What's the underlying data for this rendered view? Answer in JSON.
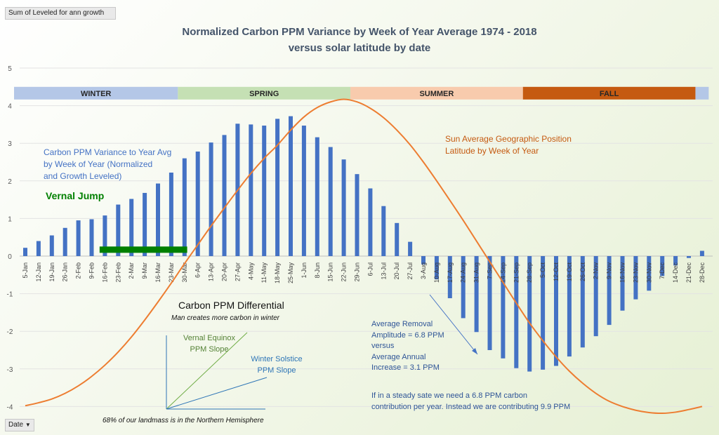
{
  "controls": {
    "pivot_field_label": "Sum of Leveled for ann growth",
    "date_field_label": "Date",
    "date_dropdown_icon": "chevron-down-icon"
  },
  "chart_data": {
    "type": "bar",
    "title": "Normalized Carbon PPM Variance by Week  of  Year Average 1974 - 2018",
    "subtitle": "versus solar latitude by date",
    "ylim": [
      -4,
      5
    ],
    "yticks": [
      5,
      4,
      3,
      2,
      1,
      0,
      -1,
      -2,
      -3,
      -4
    ],
    "grid": true,
    "categories": [
      "5-Jan",
      "12-Jan",
      "19-Jan",
      "26-Jan",
      "2-Feb",
      "9-Feb",
      "16-Feb",
      "23-Feb",
      "2-Mar",
      "9-Mar",
      "16-Mar",
      "23-Mar",
      "30-Mar",
      "6-Apr",
      "13-Apr",
      "20-Apr",
      "27-Apr",
      "4-May",
      "11-May",
      "18-May",
      "25-May",
      "1-Jun",
      "8-Jun",
      "15-Jun",
      "22-Jun",
      "29-Jun",
      "6-Jul",
      "13-Jul",
      "20-Jul",
      "27-Jul",
      "3-Aug",
      "10-Aug",
      "17-Aug",
      "24-Aug",
      "31-Aug",
      "7-Sep",
      "14-Sep",
      "21-Sep",
      "28-Sep",
      "5-Oct",
      "12-Oct",
      "19-Oct",
      "26-Oct",
      "2-Nov",
      "9-Nov",
      "16-Nov",
      "23-Nov",
      "30-Nov",
      "7-Dec",
      "14-Dec",
      "21-Dec",
      "28-Dec"
    ],
    "series": [
      {
        "color": "#4472c4",
        "values": [
          0.22,
          0.4,
          0.55,
          0.75,
          0.95,
          0.98,
          1.08,
          1.37,
          1.52,
          1.68,
          1.93,
          2.22,
          2.6,
          2.78,
          3.02,
          3.22,
          3.52,
          3.5,
          3.47,
          3.65,
          3.72,
          3.47,
          3.16,
          2.9,
          2.57,
          2.18,
          1.8,
          1.33,
          0.88,
          0.38,
          -0.22,
          -0.62,
          -1.12,
          -1.65,
          -2.02,
          -2.5,
          -2.72,
          -2.98,
          -3.07,
          -3.02,
          -2.92,
          -2.67,
          -2.43,
          -2.13,
          -1.83,
          -1.45,
          -1.15,
          -0.92,
          -0.53,
          -0.25,
          -0.05,
          0.14
        ]
      },
      {
        "name": "Sun Average Geographic Position Latitude by Week of Year",
        "type": "line",
        "color": "#ed7d31",
        "values": [
          -3.98,
          -3.9,
          -3.8,
          -3.65,
          -3.45,
          -3.2,
          -2.9,
          -2.55,
          -2.15,
          -1.7,
          -1.22,
          -0.72,
          -0.2,
          0.3,
          0.8,
          1.28,
          1.75,
          2.2,
          2.6,
          2.95,
          3.35,
          3.7,
          3.95,
          4.1,
          4.17,
          4.1,
          3.93,
          3.68,
          3.35,
          2.96,
          2.5,
          2.0,
          1.48,
          0.95,
          0.4,
          -0.15,
          -0.7,
          -1.25,
          -1.78,
          -2.25,
          -2.68,
          -3.06,
          -3.38,
          -3.65,
          -3.86,
          -4.0,
          -4.1,
          -4.16,
          -4.18,
          -4.15,
          -4.08,
          -4.0
        ]
      }
    ],
    "seasons": [
      {
        "label": "WINTER",
        "color": "#b4c7e7",
        "start": 0,
        "end": 11.5
      },
      {
        "label": "SPRING",
        "color": "#c5e0b4",
        "start": 11.5,
        "end": 24.5
      },
      {
        "label": "SUMMER",
        "color": "#f8cbad",
        "start": 24.5,
        "end": 37.5
      },
      {
        "label": "FALL",
        "color": "#c55a11",
        "start": 37.5,
        "end": 50.5
      },
      {
        "label": "",
        "color": "#b4c7e7",
        "start": 50.5,
        "end": 51.5
      }
    ],
    "vernal_jump": {
      "label": "Vernal Jump",
      "color": "#008000",
      "start": 5.6,
      "end": 12.2,
      "value": 0.18
    }
  },
  "annotations": {
    "carbon_variance_label": [
      "Carbon PPM Variance to Year Avg",
      "by Week of Year (Normalized",
      "and Growth Leveled)"
    ],
    "sun_label": [
      "Sun Average Geographic Position",
      "Latitude by Week of Year"
    ],
    "differential_title": "Carbon PPM Differential",
    "differential_subtitle": "Man creates more carbon in winter",
    "vernal_slope_label": [
      "Vernal Equinox",
      "PPM Slope"
    ],
    "winter_slope_label": [
      "Winter Solstice",
      "PPM Slope"
    ],
    "landmass_note": "68% of our landmass is in the Northern Hemisphere",
    "removal_text": [
      "Average Removal",
      "Amplitude = 6.8 PPM",
      "versus",
      "Average Annual",
      "Increase  =  3.1 PPM"
    ],
    "steady_state_text": [
      "If in a steady sate we need a 6.8 PPM carbon",
      "contribution per year. Instead we are contributing 9.9 PPM"
    ],
    "colors": {
      "blue_text": "#4472c4",
      "orange_text": "#c55a11",
      "green": "#008000",
      "diagram_green": "#70ad47",
      "diagram_blue": "#2e75b6",
      "axis_gray": "#595959"
    }
  }
}
